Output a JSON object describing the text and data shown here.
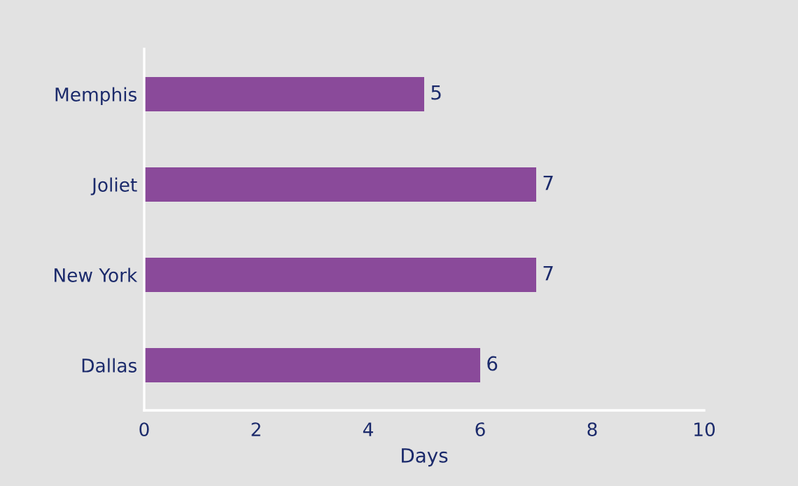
{
  "chart_data": {
    "type": "bar",
    "orientation": "horizontal",
    "xlabel": "Days",
    "categories": [
      "Memphis",
      "Joliet",
      "New York",
      "Dallas"
    ],
    "values": [
      5,
      7,
      7,
      6
    ],
    "color": "#8a4a9a",
    "xlim": [
      0,
      10
    ],
    "xticks": [
      0,
      2,
      4,
      6,
      8,
      10
    ],
    "grid": false,
    "data_labels": true
  }
}
